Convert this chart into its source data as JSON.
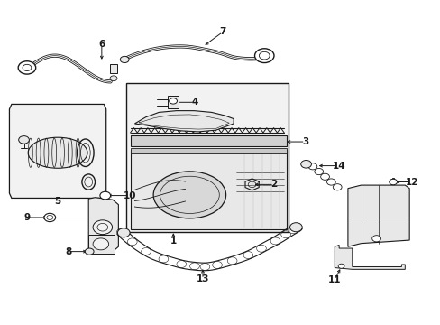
{
  "bg": "#ffffff",
  "lc": "#1a1a1a",
  "gray_fill": "#e8e8e8",
  "light_fill": "#f2f2f2",
  "fig_w": 4.89,
  "fig_h": 3.6,
  "dpi": 100,
  "labels": {
    "1": [
      0.395,
      0.285,
      0.0,
      -0.03
    ],
    "2": [
      0.575,
      0.435,
      0.048,
      0.0
    ],
    "3": [
      0.635,
      0.52,
      0.048,
      0.0
    ],
    "4": [
      0.445,
      0.68,
      0.055,
      0.0
    ],
    "5": [
      0.12,
      0.375,
      0.0,
      -0.03
    ],
    "6": [
      0.23,
      0.87,
      0.0,
      0.04
    ],
    "7": [
      0.53,
      0.905,
      0.0,
      0.04
    ],
    "8": [
      0.165,
      0.235,
      -0.05,
      0.0
    ],
    "9": [
      0.1,
      0.325,
      -0.055,
      0.0
    ],
    "10": [
      0.235,
      0.435,
      0.055,
      0.0
    ],
    "11": [
      0.765,
      0.178,
      -0.015,
      -0.04
    ],
    "12": [
      0.895,
      0.355,
      0.045,
      0.0
    ],
    "13": [
      0.435,
      0.092,
      0.0,
      -0.035
    ],
    "14": [
      0.72,
      0.49,
      0.055,
      0.0
    ]
  }
}
